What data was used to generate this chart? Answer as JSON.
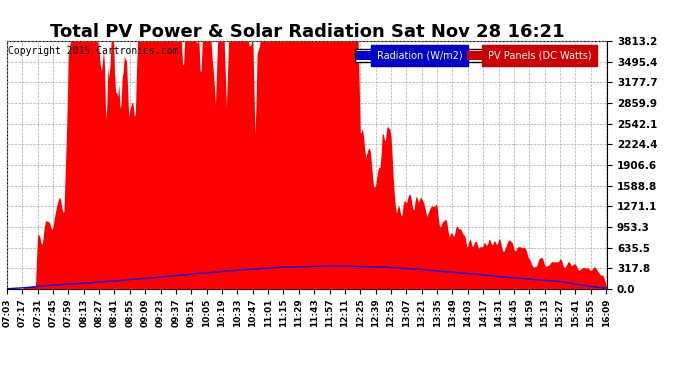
{
  "title": "Total PV Power & Solar Radiation Sat Nov 28 16:21",
  "copyright": "Copyright 2015 Cartronics.com",
  "legend_radiation": "Radiation (W/m2)",
  "legend_pv": "PV Panels (DC Watts)",
  "legend_radiation_bg": "#0000cc",
  "legend_pv_bg": "#cc0000",
  "yticks": [
    0.0,
    317.8,
    635.5,
    953.3,
    1271.1,
    1588.8,
    1906.6,
    2224.4,
    2542.1,
    2859.9,
    3177.7,
    3495.4,
    3813.2
  ],
  "ymax": 3813.2,
  "ymin": 0.0,
  "pv_color": "#ff0000",
  "radiation_color": "#0000ff",
  "background_color": "#ffffff",
  "grid_color": "#aaaaaa",
  "title_fontsize": 13,
  "copyright_fontsize": 7,
  "tick_fontsize": 6.5,
  "ytick_fontsize": 7.5
}
